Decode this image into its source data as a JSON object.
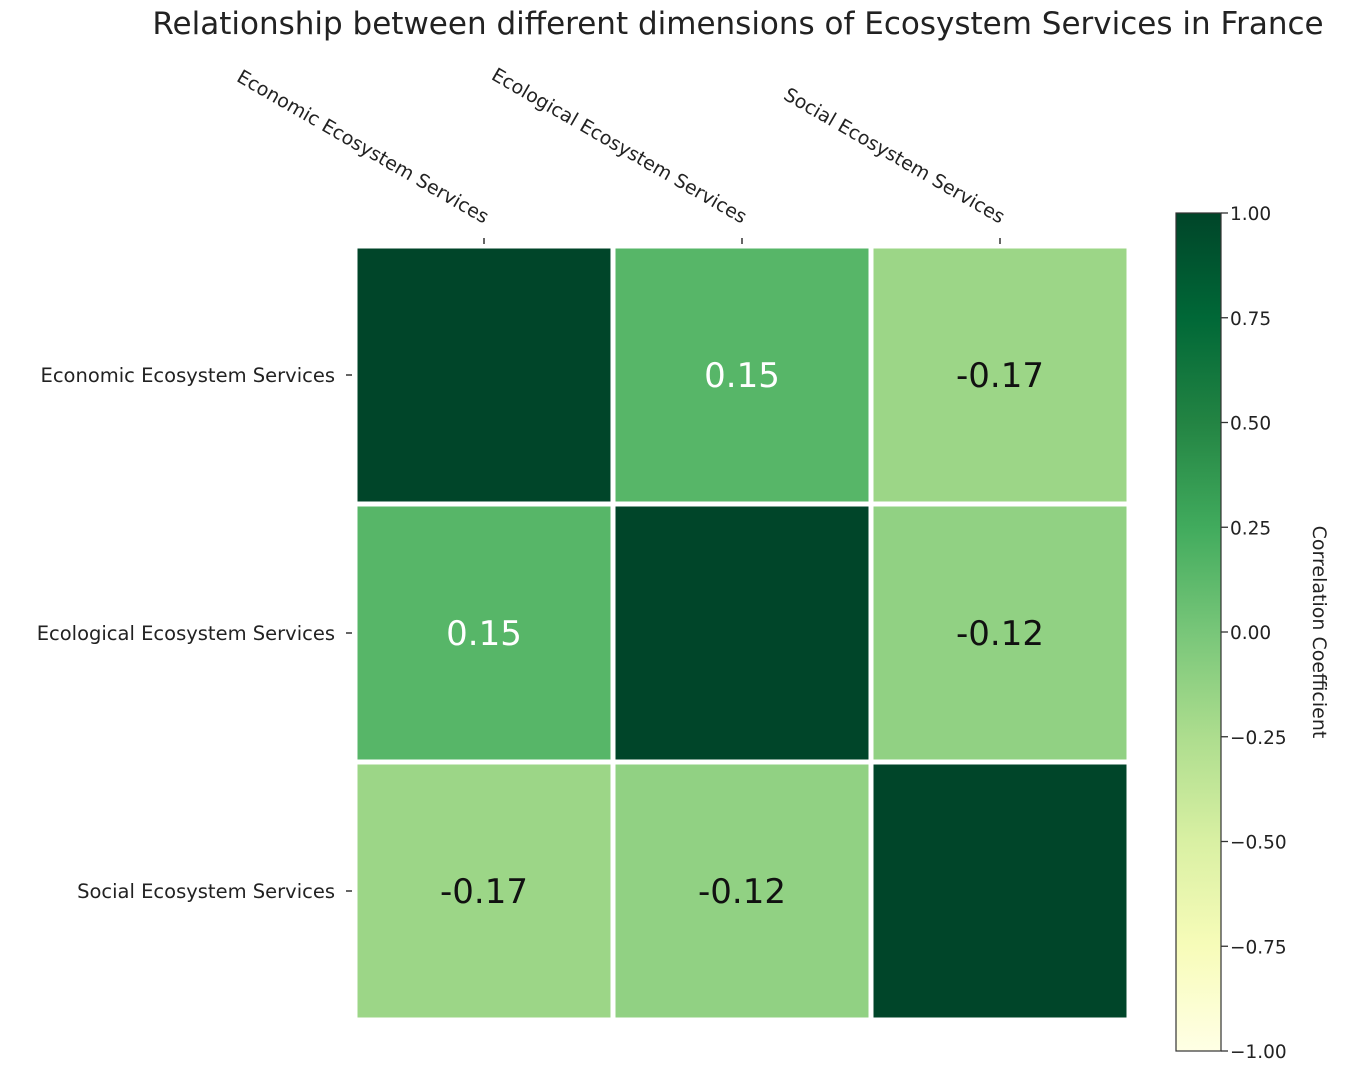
{
  "chart_data": {
    "type": "heatmap",
    "title": "Relationship between different dimensions of Ecosystem Services in France",
    "x_labels": [
      "Economic Ecosystem Services",
      "Ecological Ecosystem Services",
      "Social Ecosystem Services"
    ],
    "y_labels": [
      "Economic Ecosystem Services",
      "Ecological Ecosystem Services",
      "Social Ecosystem Services"
    ],
    "matrix": [
      [
        1.0,
        0.15,
        -0.17
      ],
      [
        0.15,
        1.0,
        -0.12
      ],
      [
        -0.17,
        -0.12,
        1.0
      ]
    ],
    "annotations": [
      [
        "",
        "0.15",
        "-0.17"
      ],
      [
        "0.15",
        "",
        "-0.12"
      ],
      [
        "-0.17",
        "-0.12",
        ""
      ]
    ],
    "colorbar": {
      "label": "Correlation Coefficient",
      "range": [
        -1.0,
        1.0
      ],
      "ticks": [
        "1.00",
        "0.75",
        "0.50",
        "0.25",
        "0.00",
        "−0.25",
        "−0.50",
        "−0.75",
        "−1.00"
      ],
      "colormap": "YlGn",
      "colors": [
        "#ffffe5",
        "#f7fcb9",
        "#d9f0a3",
        "#addd8e",
        "#78c679",
        "#41ab5d",
        "#238443",
        "#006837",
        "#004529"
      ]
    },
    "grid": false
  }
}
